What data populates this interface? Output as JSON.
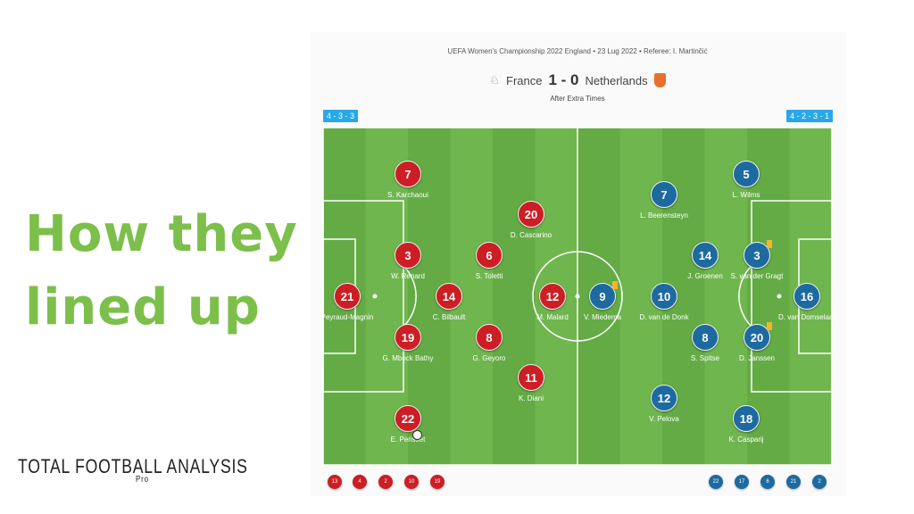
{
  "headline": {
    "line1": "How they",
    "line2": "lined up",
    "color": "#7cbf4a"
  },
  "logo": {
    "text": "Total Football Analysis",
    "sub": "Pro"
  },
  "match": {
    "title": "UEFA Women's Championship 2022 England • 23 Lug 2022 • Referee: I. Martinčić",
    "home": "France",
    "score": "1 - 0",
    "away": "Netherlands",
    "note": "After Extra Times"
  },
  "formations": {
    "home": "4 - 3 - 3",
    "away": "4 - 2 - 3 - 1"
  },
  "colors": {
    "home": "#cc1e24",
    "away": "#1d6aa0",
    "pitch": "#6ab04c"
  },
  "home_players": [
    {
      "n": "7",
      "name": "S. Karchaoui"
    },
    {
      "n": "20",
      "name": "D. Cascarino"
    },
    {
      "n": "3",
      "name": "W. Renard"
    },
    {
      "n": "6",
      "name": "S. Toletti"
    },
    {
      "n": "21",
      "name": "Peyraud-Magnin"
    },
    {
      "n": "14",
      "name": "C. Bilbault"
    },
    {
      "n": "12",
      "name": "M. Malard"
    },
    {
      "n": "19",
      "name": "G. Mbock Bathy"
    },
    {
      "n": "8",
      "name": "G. Geyoro"
    },
    {
      "n": "11",
      "name": "K. Diani"
    },
    {
      "n": "22",
      "name": "E. Perisset"
    }
  ],
  "away_players": [
    {
      "n": "5",
      "name": "L. Wilms"
    },
    {
      "n": "7",
      "name": "L. Beerensteyn"
    },
    {
      "n": "14",
      "name": "J. Groenen"
    },
    {
      "n": "3",
      "name": "S. van der Gragt",
      "card": "yellow"
    },
    {
      "n": "9",
      "name": "V. Miedema",
      "card": "yellow"
    },
    {
      "n": "10",
      "name": "D. van de Donk"
    },
    {
      "n": "16",
      "name": "D. van Domselaar"
    },
    {
      "n": "8",
      "name": "S. Spitse"
    },
    {
      "n": "20",
      "name": "D. Janssen",
      "card": "yellow"
    },
    {
      "n": "12",
      "name": "V. Pelova"
    },
    {
      "n": "18",
      "name": "K. Casparij"
    }
  ],
  "home_subs": [
    "13",
    "4",
    "2",
    "10",
    "19"
  ],
  "away_subs": [
    "22",
    "17",
    "6",
    "21",
    "2"
  ]
}
